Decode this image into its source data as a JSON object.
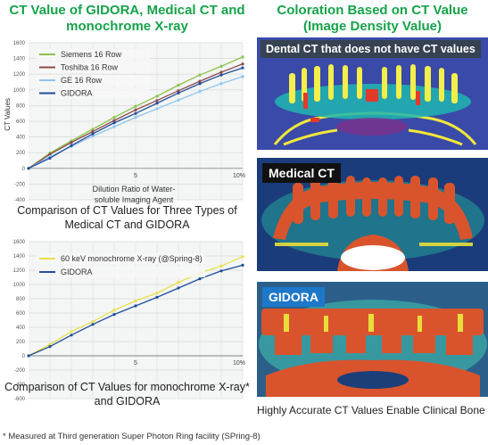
{
  "left_title": "CT Value of GIDORA, Medical CT and monochrome X-ray",
  "right_title": "Coloration Based on CT Value (Image Density Value)",
  "chart_data": [
    {
      "type": "line",
      "x": [
        0,
        1,
        2,
        3,
        4,
        5,
        6,
        7,
        8,
        9,
        10
      ],
      "x_tick_labels": [
        "5",
        "10%"
      ],
      "y_tick_labels": [
        "1600",
        "1400",
        "1200",
        "1000",
        "800",
        "600",
        "400",
        "200",
        "0",
        "-200",
        "-400"
      ],
      "ylim": [
        -400,
        1600
      ],
      "xlim": [
        0,
        10
      ],
      "ylabel": "CT Values",
      "xlabel": "Dilution Ratio of Water-soluble Imaging Agent",
      "grid": true,
      "legend_position": "top-left",
      "series": [
        {
          "name": "Siemens 16 Row",
          "color": "#8bc34a",
          "values": [
            0,
            195,
            350,
            500,
            650,
            790,
            920,
            1060,
            1190,
            1300,
            1420
          ]
        },
        {
          "name": "Toshiba 16 Row",
          "color": "#8b4a4a",
          "values": [
            0,
            180,
            330,
            470,
            610,
            745,
            865,
            990,
            1110,
            1225,
            1330
          ]
        },
        {
          "name": "GE 16 Row",
          "color": "#8ec5ee",
          "values": [
            0,
            150,
            280,
            410,
            530,
            650,
            760,
            870,
            980,
            1080,
            1170
          ]
        },
        {
          "name": "GIDORA",
          "color": "#1f4e9a",
          "values": [
            0,
            130,
            290,
            440,
            580,
            700,
            830,
            960,
            1080,
            1190,
            1280
          ]
        }
      ],
      "caption": "Comparison of CT Values for Three Types of Medical CT and GIDORA"
    },
    {
      "type": "line",
      "x": [
        0,
        1,
        2,
        3,
        4,
        5,
        6,
        7,
        8,
        9,
        10
      ],
      "x_tick_labels": [
        "5",
        "10%"
      ],
      "y_tick_labels": [
        "1600",
        "1400",
        "1200",
        "1000",
        "800",
        "600",
        "400",
        "200",
        "0",
        "-200",
        "-400",
        "-600"
      ],
      "ylim": [
        -600,
        1600
      ],
      "xlim": [
        0,
        10
      ],
      "grid": true,
      "legend_position": "top-left",
      "series": [
        {
          "name": "60 keV monochrome X-ray (@Spring-8)",
          "color": "#e8e04a",
          "values": [
            0,
            160,
            340,
            480,
            640,
            770,
            880,
            1030,
            1160,
            1260,
            1390
          ]
        },
        {
          "name": "GIDORA",
          "color": "#1f4e9a",
          "values": [
            0,
            130,
            290,
            440,
            580,
            700,
            820,
            950,
            1080,
            1190,
            1270
          ]
        }
      ],
      "caption": "Comparison of CT Values for monochrome X-ray* and GIDORA"
    }
  ],
  "footnote": "* Measured at Third generation Super Photon Ring facility (SPring-8)",
  "panels": [
    {
      "badge": "Dental CT that does not have CT values"
    },
    {
      "badge": "Medical CT"
    },
    {
      "badge": "GIDORA"
    }
  ],
  "right_caption": "Highly Accurate CT Values Enable Clinical Bone Quality Diagnoses"
}
